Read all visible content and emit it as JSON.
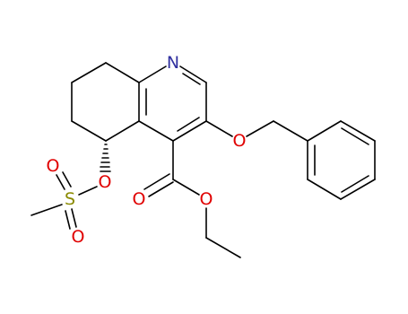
{
  "atoms": [
    "N",
    "O",
    "S",
    "O",
    "O",
    "O",
    "O",
    "O"
  ]
}
